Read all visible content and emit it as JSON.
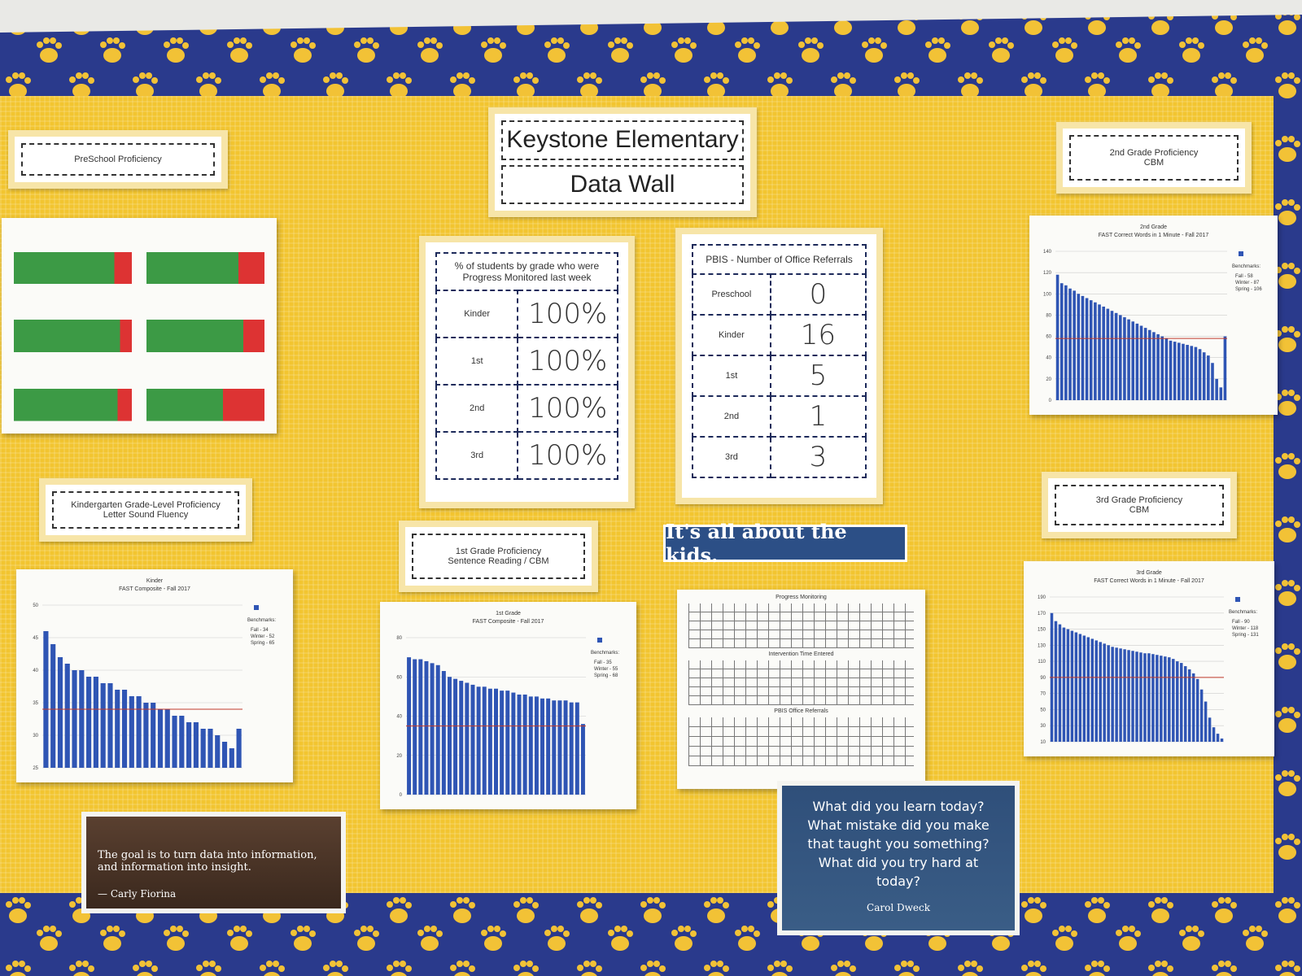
{
  "header": {
    "title": "Keystone Elementary",
    "subtitle": "Data Wall"
  },
  "labels": {
    "preschool": [
      "PreSchool Proficiency"
    ],
    "kinder": [
      "Kindergarten Grade-Level Proficiency",
      "Letter Sound Fluency"
    ],
    "first": [
      "1st Grade Proficiency",
      "Sentence Reading / CBM"
    ],
    "second": [
      "2nd Grade Proficiency",
      "CBM"
    ],
    "third": [
      "3rd Grade Proficiency",
      "CBM"
    ]
  },
  "progress_table": {
    "title": "% of students by grade who were Progress Monitored last week",
    "rows": [
      [
        "Kinder",
        "100%"
      ],
      [
        "1st",
        "100%"
      ],
      [
        "2nd",
        "100%"
      ],
      [
        "3rd",
        "100%"
      ]
    ]
  },
  "pbis_table": {
    "title": "PBIS - Number of Office Referrals",
    "rows": [
      [
        "Preschool",
        "0"
      ],
      [
        "Kinder",
        "16"
      ],
      [
        "1st",
        "5"
      ],
      [
        "2nd",
        "1"
      ],
      [
        "3rd",
        "3"
      ]
    ]
  },
  "banner": "It's all about the kids.",
  "monitoring_sheet": {
    "sections": [
      "Progress Monitoring",
      "Intervention Time Entered",
      "PBIS Office Referrals"
    ]
  },
  "quote_left": {
    "text": "The goal is to turn data into information, and information into insight.",
    "author": "— Carly Fiorina"
  },
  "quote_right": {
    "text": "What did you learn today? What mistake did you make that taught you something? What did you try hard at today?",
    "author": "Carol Dweck"
  },
  "chart_data": [
    {
      "type": "bar",
      "title": [
        "Kinder",
        "FAST Composite - Fall 2017"
      ],
      "color": "#2f55b4",
      "ylim": [
        25,
        50
      ],
      "yticks": [
        25,
        30,
        35,
        40,
        45,
        50
      ],
      "legend_title": "Benchmarks:",
      "benchmarks": [
        {
          "value": 34,
          "label": "Fall - 34"
        },
        {
          "value": 52,
          "label": "Winter - 52"
        },
        {
          "value": 65,
          "label": "Spring - 65"
        }
      ],
      "values": [
        46,
        44,
        42,
        41,
        40,
        40,
        39,
        39,
        38,
        38,
        37,
        37,
        36,
        36,
        35,
        35,
        34,
        34,
        33,
        33,
        32,
        32,
        31,
        31,
        30,
        29,
        28,
        31
      ]
    },
    {
      "type": "bar",
      "title": [
        "1st Grade",
        "FAST Composite - Fall 2017"
      ],
      "color": "#2f55b4",
      "ylim": [
        0,
        80
      ],
      "yticks": [
        0,
        20,
        40,
        60,
        80
      ],
      "legend_title": "Benchmarks:",
      "benchmarks": [
        {
          "value": 35,
          "label": "Fall - 35"
        },
        {
          "value": 55,
          "label": "Winter - 55"
        },
        {
          "value": 68,
          "label": "Spring - 68"
        }
      ],
      "values": [
        70,
        69,
        69,
        68,
        67,
        66,
        63,
        60,
        59,
        58,
        57,
        56,
        55,
        55,
        54,
        54,
        53,
        53,
        52,
        51,
        51,
        50,
        50,
        49,
        49,
        48,
        48,
        48,
        47,
        47,
        36
      ]
    },
    {
      "type": "bar",
      "title": [
        "2nd Grade",
        "FAST Correct Words in 1 Minute - Fall 2017"
      ],
      "color": "#2f55b4",
      "ylim": [
        0,
        140
      ],
      "yticks": [
        0,
        20,
        40,
        60,
        80,
        100,
        120,
        140
      ],
      "legend_title": "Benchmarks:",
      "benchmarks": [
        {
          "value": 58,
          "label": "Fall - 58"
        },
        {
          "value": 87,
          "label": "Winter - 87"
        },
        {
          "value": 106,
          "label": "Spring - 106"
        }
      ],
      "values": [
        118,
        110,
        108,
        105,
        103,
        100,
        98,
        96,
        94,
        92,
        90,
        88,
        86,
        84,
        82,
        80,
        78,
        76,
        74,
        72,
        70,
        68,
        66,
        64,
        62,
        60,
        58,
        56,
        55,
        54,
        53,
        52,
        51,
        50,
        48,
        45,
        42,
        35,
        20,
        12,
        60
      ]
    },
    {
      "type": "bar",
      "title": [
        "3rd Grade",
        "FAST Correct Words in 1 Minute - Fall 2017"
      ],
      "color": "#2f55b4",
      "ylim": [
        10,
        190
      ],
      "yticks": [
        10,
        30,
        50,
        70,
        90,
        110,
        130,
        150,
        170,
        190
      ],
      "legend_title": "Benchmarks:",
      "benchmarks": [
        {
          "value": 90,
          "label": "Fall - 90"
        },
        {
          "value": 118,
          "label": "Winter - 118"
        },
        {
          "value": 131,
          "label": "Spring - 131"
        }
      ],
      "values": [
        170,
        160,
        156,
        152,
        150,
        148,
        146,
        144,
        142,
        140,
        138,
        136,
        134,
        132,
        130,
        128,
        127,
        126,
        125,
        124,
        123,
        122,
        121,
        120,
        120,
        119,
        118,
        117,
        116,
        115,
        113,
        110,
        108,
        104,
        100,
        95,
        88,
        75,
        60,
        40,
        28,
        20,
        14
      ]
    }
  ]
}
